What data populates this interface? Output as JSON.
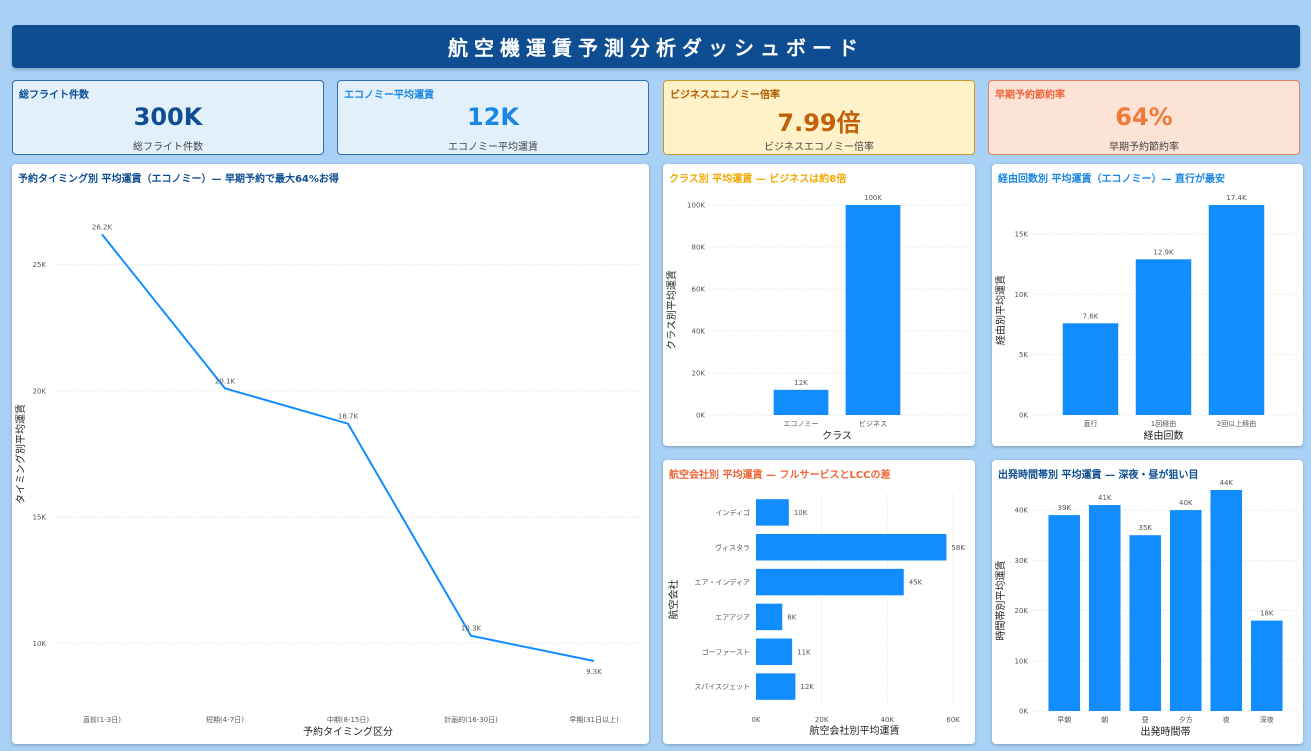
{
  "header": {
    "title": "航空機運賃予測分析ダッシュボード"
  },
  "kpis": [
    {
      "title": "総フライト件数",
      "value": "300K",
      "caption": "総フライト件数"
    },
    {
      "title": "エコノミー平均運賃",
      "value": "12K",
      "caption": "エコノミー平均運賃"
    },
    {
      "title": "ビジネスエコノミー倍率",
      "value": "7.99倍",
      "caption": "ビジネスエコノミー倍率"
    },
    {
      "title": "早期予約節約率",
      "value": "64%",
      "caption": "早期予約節約率"
    }
  ],
  "colors": {
    "bar": "#118dff",
    "header": "#0e4d92",
    "grid": "#dddddd"
  },
  "chart_data": [
    {
      "id": "timing",
      "type": "line",
      "title": "予約タイミング別 平均運賃（エコノミー）— 早期予約で最大64%お得",
      "xlabel": "予約タイミング区分",
      "ylabel": "タイミング別平均運賃",
      "categories": [
        "直前(1-3日)",
        "短期(4-7日)",
        "中期(8-15日)",
        "計画的(16-30日)",
        "早期(31日以上)"
      ],
      "values": [
        26200,
        20100,
        18700,
        10300,
        9300
      ],
      "data_labels": [
        "26.2K",
        "20.1K",
        "18.7K",
        "10.3K",
        "9.3K"
      ],
      "yticks": [
        10000,
        15000,
        20000,
        25000
      ],
      "ytick_labels": [
        "10K",
        "15K",
        "20K",
        "25K"
      ],
      "ylim": [
        7200,
        27800
      ],
      "grid": true
    },
    {
      "id": "class",
      "type": "bar",
      "title": "クラス別 平均運賃 — ビジネスは約8倍",
      "xlabel": "クラス",
      "ylabel": "クラス別平均運賃",
      "categories": [
        "エコノミー",
        "ビジネス"
      ],
      "values": [
        12000,
        100000
      ],
      "data_labels": [
        "12K",
        "100K"
      ],
      "yticks": [
        0,
        20000,
        40000,
        60000,
        80000,
        100000
      ],
      "ytick_labels": [
        "0K",
        "20K",
        "40K",
        "60K",
        "80K",
        "100K"
      ],
      "ylim": [
        0,
        100000
      ],
      "grid": true
    },
    {
      "id": "stops",
      "type": "bar",
      "title": "経由回数別 平均運賃（エコノミー）— 直行が最安",
      "xlabel": "経由回数",
      "ylabel": "経由別平均運賃",
      "categories": [
        "直行",
        "1回経由",
        "2回以上経由"
      ],
      "values": [
        7600,
        12900,
        17400
      ],
      "data_labels": [
        "7.6K",
        "12.9K",
        "17.4K"
      ],
      "yticks": [
        0,
        5000,
        10000,
        15000
      ],
      "ytick_labels": [
        "0K",
        "5K",
        "10K",
        "15K"
      ],
      "ylim": [
        0,
        17400
      ],
      "grid": true
    },
    {
      "id": "airline",
      "type": "bar",
      "orientation": "horizontal",
      "title": "航空会社別 平均運賃 — フルサービスとLCCの差",
      "xlabel": "航空会社別平均運賃",
      "ylabel": "航空会社",
      "categories": [
        "インディゴ",
        "ヴィスタラ",
        "エア・インディア",
        "エアアジア",
        "ゴーファースト",
        "スパイスジェット"
      ],
      "values": [
        10000,
        58000,
        45000,
        8000,
        11000,
        12000
      ],
      "data_labels": [
        "10K",
        "58K",
        "45K",
        "8K",
        "11K",
        "12K"
      ],
      "xticks": [
        0,
        20000,
        40000,
        60000
      ],
      "xtick_labels": [
        "0K",
        "20K",
        "40K",
        "60K"
      ],
      "xlim": [
        0,
        60000
      ],
      "grid": true
    },
    {
      "id": "time",
      "type": "bar",
      "title": "出発時間帯別 平均運賃 — 深夜・昼が狙い目",
      "xlabel": "出発時間帯",
      "ylabel": "時間帯別平均運賃",
      "categories": [
        "早朝",
        "朝",
        "昼",
        "夕方",
        "夜",
        "深夜"
      ],
      "values": [
        39000,
        41000,
        35000,
        40000,
        44000,
        18000
      ],
      "data_labels": [
        "39K",
        "41K",
        "35K",
        "40K",
        "44K",
        "18K"
      ],
      "yticks": [
        0,
        10000,
        20000,
        30000,
        40000
      ],
      "ytick_labels": [
        "0K",
        "10K",
        "20K",
        "30K",
        "40K"
      ],
      "ylim": [
        0,
        44000
      ],
      "grid": true
    }
  ]
}
